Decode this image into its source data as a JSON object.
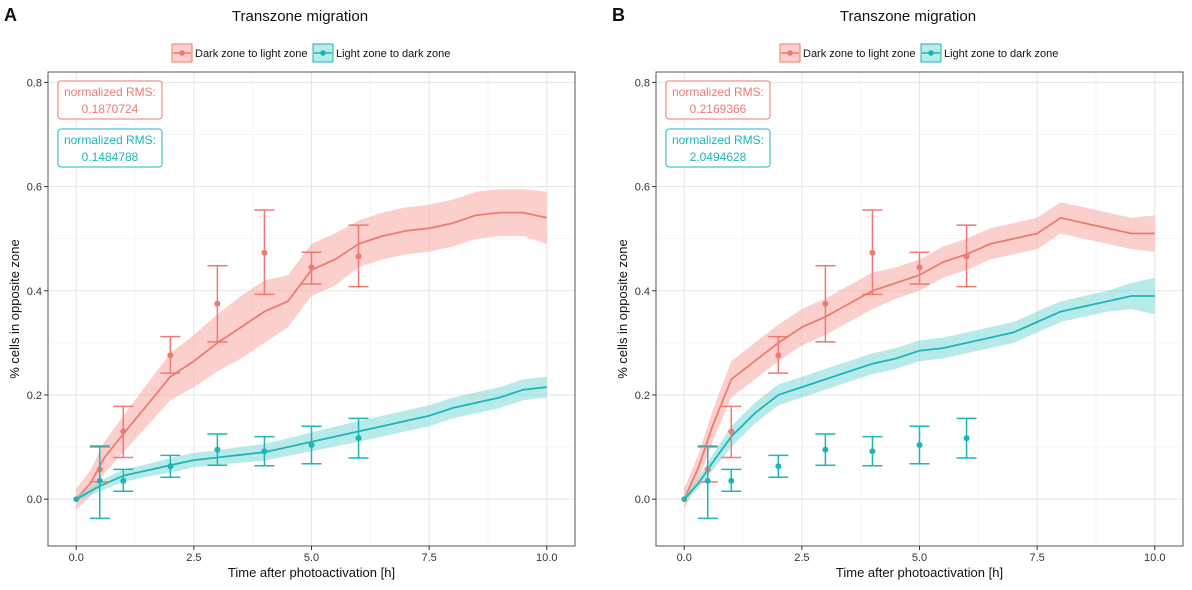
{
  "colors": {
    "red": "#F07A72",
    "red_fill": "#F8A9A3",
    "teal": "#1FB5B8",
    "teal_fill": "#7FD8D9",
    "grid": "#E5E5E5",
    "panel_border": "#555555"
  },
  "chart_data": [
    {
      "panel_label": "A",
      "type": "line",
      "title": "Transzone migration",
      "xlabel": "Time after photoactivation [h]",
      "ylabel": "% cells in opposite zone",
      "xlim": [
        -0.6,
        10.6
      ],
      "ylim": [
        -0.09,
        0.82
      ],
      "xticks": [
        0.0,
        2.5,
        5.0,
        7.5,
        10.0
      ],
      "xtick_labels": [
        "0.0",
        "2.5",
        "5.0",
        "7.5",
        "10.0"
      ],
      "yticks": [
        0.0,
        0.2,
        0.4,
        0.6,
        0.8
      ],
      "ytick_labels": [
        "0.0",
        "0.2",
        "0.4",
        "0.6",
        "0.8"
      ],
      "legend": [
        "Dark zone to light zone",
        "Light zone to dark zone"
      ],
      "rms_boxes": [
        {
          "label": "normalized RMS:",
          "value": "0.1870724",
          "series": "red"
        },
        {
          "label": "normalized RMS:",
          "value": "0.1484788",
          "series": "teal"
        }
      ],
      "series": [
        {
          "name": "Dark zone to light zone",
          "color": "red",
          "sim": [
            [
              0.0,
              0.0
            ],
            [
              0.3,
              0.03
            ],
            [
              0.6,
              0.08
            ],
            [
              1.0,
              0.125
            ],
            [
              1.5,
              0.18
            ],
            [
              2.0,
              0.235
            ],
            [
              2.5,
              0.265
            ],
            [
              3.0,
              0.3
            ],
            [
              3.5,
              0.33
            ],
            [
              4.0,
              0.36
            ],
            [
              4.5,
              0.38
            ],
            [
              5.0,
              0.44
            ],
            [
              5.5,
              0.46
            ],
            [
              6.0,
              0.49
            ],
            [
              6.5,
              0.505
            ],
            [
              7.0,
              0.515
            ],
            [
              7.5,
              0.52
            ],
            [
              8.0,
              0.53
            ],
            [
              8.5,
              0.545
            ],
            [
              9.0,
              0.55
            ],
            [
              9.5,
              0.55
            ],
            [
              10.0,
              0.54
            ]
          ],
          "band": [
            0.02,
            0.025,
            0.03,
            0.035,
            0.04,
            0.045,
            0.05,
            0.055,
            0.06,
            0.06,
            0.05,
            0.05,
            0.05,
            0.045,
            0.045,
            0.045,
            0.045,
            0.045,
            0.045,
            0.045,
            0.045,
            0.05
          ],
          "exp_t": [
            0.5,
            1.0,
            2.0,
            3.0,
            4.0,
            5.0,
            6.0
          ],
          "exp_mean": [
            0.057,
            0.13,
            0.276,
            0.375,
            0.473,
            0.445,
            0.466
          ],
          "exp_lo": [
            0.033,
            0.08,
            0.242,
            0.302,
            0.393,
            0.413,
            0.408
          ],
          "exp_hi": [
            0.1,
            0.178,
            0.312,
            0.448,
            0.555,
            0.474,
            0.526
          ]
        },
        {
          "name": "Light zone to dark zone",
          "color": "teal",
          "sim": [
            [
              0.0,
              0.0
            ],
            [
              0.5,
              0.025
            ],
            [
              1.0,
              0.045
            ],
            [
              1.5,
              0.055
            ],
            [
              2.0,
              0.065
            ],
            [
              2.5,
              0.075
            ],
            [
              3.0,
              0.08
            ],
            [
              3.5,
              0.085
            ],
            [
              4.0,
              0.09
            ],
            [
              4.5,
              0.1
            ],
            [
              5.0,
              0.11
            ],
            [
              5.5,
              0.12
            ],
            [
              6.0,
              0.13
            ],
            [
              6.5,
              0.14
            ],
            [
              7.0,
              0.15
            ],
            [
              7.5,
              0.16
            ],
            [
              8.0,
              0.175
            ],
            [
              8.5,
              0.185
            ],
            [
              9.0,
              0.195
            ],
            [
              9.5,
              0.21
            ],
            [
              10.0,
              0.215
            ]
          ],
          "band": [
            0.005,
            0.01,
            0.012,
            0.012,
            0.014,
            0.014,
            0.014,
            0.015,
            0.016,
            0.017,
            0.018,
            0.019,
            0.02,
            0.02,
            0.02,
            0.02,
            0.02,
            0.02,
            0.02,
            0.02,
            0.02
          ],
          "exp_t": [
            0.5,
            1.0,
            2.0,
            3.0,
            4.0,
            5.0,
            6.0
          ],
          "exp_mean": [
            0.035,
            0.035,
            0.063,
            0.095,
            0.092,
            0.104,
            0.117
          ],
          "exp_lo": [
            -0.037,
            0.015,
            0.042,
            0.065,
            0.064,
            0.068,
            0.079
          ],
          "exp_hi": [
            0.102,
            0.057,
            0.084,
            0.125,
            0.12,
            0.14,
            0.155
          ]
        }
      ]
    },
    {
      "panel_label": "B",
      "type": "line",
      "title": "Transzone migration",
      "xlabel": "Time after photoactivation [h]",
      "ylabel": "% cells in opposite zone",
      "xlim": [
        -0.6,
        10.6
      ],
      "ylim": [
        -0.09,
        0.82
      ],
      "xticks": [
        0.0,
        2.5,
        5.0,
        7.5,
        10.0
      ],
      "xtick_labels": [
        "0.0",
        "2.5",
        "5.0",
        "7.5",
        "10.0"
      ],
      "yticks": [
        0.0,
        0.2,
        0.4,
        0.6,
        0.8
      ],
      "ytick_labels": [
        "0.0",
        "0.2",
        "0.4",
        "0.6",
        "0.8"
      ],
      "legend": [
        "Dark zone to light zone",
        "Light zone to dark zone"
      ],
      "rms_boxes": [
        {
          "label": "normalized RMS:",
          "value": "0.2169366",
          "series": "red"
        },
        {
          "label": "normalized RMS:",
          "value": "2.0494628",
          "series": "teal"
        }
      ],
      "series": [
        {
          "name": "Dark zone to light zone",
          "color": "red",
          "sim": [
            [
              0.0,
              0.0
            ],
            [
              0.3,
              0.06
            ],
            [
              0.6,
              0.14
            ],
            [
              1.0,
              0.23
            ],
            [
              1.5,
              0.265
            ],
            [
              2.0,
              0.3
            ],
            [
              2.5,
              0.33
            ],
            [
              3.0,
              0.35
            ],
            [
              3.5,
              0.375
            ],
            [
              4.0,
              0.4
            ],
            [
              4.5,
              0.415
            ],
            [
              5.0,
              0.43
            ],
            [
              5.5,
              0.455
            ],
            [
              6.0,
              0.47
            ],
            [
              6.5,
              0.49
            ],
            [
              7.0,
              0.5
            ],
            [
              7.5,
              0.51
            ],
            [
              8.0,
              0.54
            ],
            [
              8.5,
              0.53
            ],
            [
              9.0,
              0.52
            ],
            [
              9.5,
              0.51
            ],
            [
              10.0,
              0.51
            ]
          ],
          "band": [
            0.02,
            0.025,
            0.03,
            0.035,
            0.035,
            0.035,
            0.035,
            0.035,
            0.035,
            0.035,
            0.03,
            0.03,
            0.03,
            0.03,
            0.03,
            0.03,
            0.03,
            0.03,
            0.03,
            0.03,
            0.03,
            0.035
          ],
          "exp_t": [
            0.5,
            1.0,
            2.0,
            3.0,
            4.0,
            5.0,
            6.0
          ],
          "exp_mean": [
            0.057,
            0.13,
            0.276,
            0.375,
            0.473,
            0.445,
            0.466
          ],
          "exp_lo": [
            0.033,
            0.08,
            0.242,
            0.302,
            0.393,
            0.413,
            0.408
          ],
          "exp_hi": [
            0.1,
            0.178,
            0.312,
            0.448,
            0.555,
            0.474,
            0.526
          ]
        },
        {
          "name": "Light zone to dark zone",
          "color": "teal",
          "sim": [
            [
              0.0,
              0.0
            ],
            [
              0.3,
              0.03
            ],
            [
              0.6,
              0.07
            ],
            [
              1.0,
              0.12
            ],
            [
              1.5,
              0.165
            ],
            [
              2.0,
              0.2
            ],
            [
              2.5,
              0.215
            ],
            [
              3.0,
              0.23
            ],
            [
              3.5,
              0.245
            ],
            [
              4.0,
              0.26
            ],
            [
              4.5,
              0.27
            ],
            [
              5.0,
              0.285
            ],
            [
              5.5,
              0.29
            ],
            [
              6.0,
              0.3
            ],
            [
              6.5,
              0.31
            ],
            [
              7.0,
              0.32
            ],
            [
              7.5,
              0.34
            ],
            [
              8.0,
              0.36
            ],
            [
              8.5,
              0.37
            ],
            [
              9.0,
              0.38
            ],
            [
              9.5,
              0.39
            ],
            [
              10.0,
              0.39
            ]
          ],
          "band": [
            0.005,
            0.01,
            0.015,
            0.02,
            0.02,
            0.02,
            0.02,
            0.02,
            0.02,
            0.02,
            0.02,
            0.02,
            0.02,
            0.02,
            0.02,
            0.02,
            0.02,
            0.02,
            0.02,
            0.02,
            0.025,
            0.035
          ],
          "exp_t": [
            0.5,
            1.0,
            2.0,
            3.0,
            4.0,
            5.0,
            6.0
          ],
          "exp_mean": [
            0.035,
            0.035,
            0.063,
            0.095,
            0.092,
            0.104,
            0.117
          ],
          "exp_lo": [
            -0.037,
            0.015,
            0.042,
            0.065,
            0.064,
            0.068,
            0.079
          ],
          "exp_hi": [
            0.102,
            0.057,
            0.084,
            0.125,
            0.12,
            0.14,
            0.155
          ]
        }
      ]
    }
  ]
}
